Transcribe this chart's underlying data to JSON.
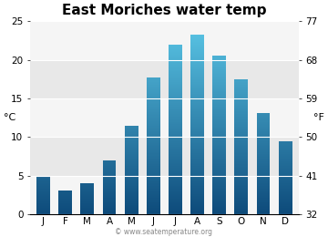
{
  "title": "East Moriches water temp",
  "months": [
    "J",
    "F",
    "M",
    "A",
    "M",
    "J",
    "J",
    "A",
    "S",
    "O",
    "N",
    "D"
  ],
  "values_c": [
    4.9,
    3.1,
    4.0,
    7.0,
    11.5,
    17.7,
    22.0,
    23.2,
    20.5,
    17.5,
    13.1,
    9.4
  ],
  "ylabel_left": "°C",
  "ylabel_right": "°F",
  "ylim_c": [
    0,
    25
  ],
  "yticks_c": [
    0,
    5,
    10,
    15,
    20,
    25
  ],
  "yticks_f": [
    32,
    41,
    50,
    59,
    68,
    77
  ],
  "bg_color": "#e8e8e8",
  "bg_band_color": "#f5f5f5",
  "bar_color_top": "#5bc8e8",
  "bar_color_bottom": "#0d4a7a",
  "title_fontsize": 11,
  "tick_fontsize": 7.5,
  "label_fontsize": 8,
  "watermark": "© www.seatemperature.org"
}
